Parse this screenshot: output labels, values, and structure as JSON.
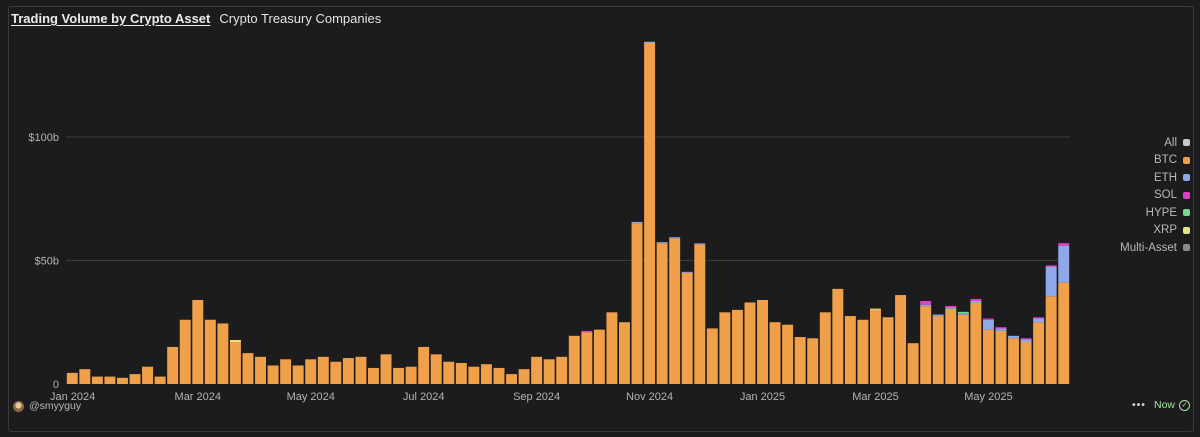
{
  "header": {
    "title": "Trading Volume by Crypto Asset",
    "subtitle": "Crypto Treasury Companies"
  },
  "footer": {
    "author": "@smyyguy",
    "menu": "•••",
    "status": "Now"
  },
  "colors": {
    "BTC": "#f0a04b",
    "ETH": "#8fa8e8",
    "SOL": "#e040c8",
    "HYPE": "#78d88a",
    "XRP": "#e8e480",
    "Multi-Asset": "#8a8a8a",
    "All": "#c8c8c8",
    "grid": "#3c3c3e",
    "axis_text": "#b4b4b4"
  },
  "chart_data": {
    "type": "bar",
    "stacked": true,
    "unit": "billions USD",
    "y_tick_labels": [
      {
        "value": 0,
        "label": "0"
      },
      {
        "value": 50,
        "label": "$50b"
      },
      {
        "value": 100,
        "label": "$100b"
      }
    ],
    "ylim": [
      0,
      138
    ],
    "x_tick_labels": [
      {
        "index": 10,
        "label": "Mar 2024"
      },
      {
        "index": 19,
        "label": "May 2024"
      },
      {
        "index": 28,
        "label": "Jul 2024"
      },
      {
        "index": 37,
        "label": "Sep 2024"
      },
      {
        "index": 46,
        "label": "Nov 2024"
      },
      {
        "index": 55,
        "label": "Jan 2025"
      },
      {
        "index": 64,
        "label": "Mar 2025"
      },
      {
        "index": 73,
        "label": "May 2025"
      }
    ],
    "x_start_label": "Jan 2024",
    "legend": [
      "All",
      "BTC",
      "ETH",
      "SOL",
      "HYPE",
      "XRP",
      "Multi-Asset"
    ],
    "legend_position": "right",
    "series": [
      {
        "name": "BTC",
        "values": [
          4.5,
          6,
          3,
          3,
          2.5,
          4,
          7,
          3,
          15,
          26,
          34,
          26,
          24.5,
          17,
          12.5,
          11,
          7.5,
          10,
          7.5,
          10,
          11,
          9,
          10.5,
          11,
          6.5,
          12,
          6.5,
          7,
          15,
          12,
          9,
          8.5,
          7,
          8,
          6.5,
          4,
          6,
          11,
          10,
          11,
          19.5,
          21,
          22,
          29,
          25,
          65,
          138,
          57,
          59,
          45,
          56.5,
          22.5,
          29,
          30,
          33,
          34,
          25,
          24,
          19,
          18.5,
          29,
          38.5,
          27.5,
          26,
          30,
          27,
          36,
          16.5,
          31.5,
          27.5,
          30.5,
          28,
          33,
          22,
          21.5,
          18.5,
          17,
          25,
          35.5,
          41
        ]
      },
      {
        "name": "ETH",
        "values": [
          0,
          0,
          0,
          0,
          0,
          0,
          0,
          0,
          0,
          0,
          0,
          0,
          0,
          0,
          0,
          0,
          0,
          0,
          0,
          0,
          0,
          0,
          0,
          0,
          0,
          0,
          0,
          0,
          0,
          0,
          0,
          0,
          0,
          0,
          0,
          0,
          0,
          0,
          0,
          0,
          0,
          0,
          0,
          0,
          0,
          0.6,
          0.5,
          0.4,
          0.4,
          0.4,
          0.4,
          0,
          0,
          0,
          0,
          0,
          0,
          0,
          0,
          0,
          0,
          0,
          0,
          0,
          0,
          0,
          0,
          0,
          0.6,
          0.6,
          0.6,
          0.6,
          0.6,
          4,
          1,
          1,
          1,
          1.5,
          12,
          15
        ]
      },
      {
        "name": "SOL",
        "values": [
          0,
          0,
          0,
          0,
          0,
          0,
          0,
          0,
          0,
          0,
          0,
          0,
          0,
          0,
          0,
          0,
          0,
          0,
          0,
          0,
          0,
          0,
          0,
          0,
          0,
          0,
          0,
          0,
          0,
          0,
          0,
          0,
          0,
          0,
          0,
          0,
          0,
          0,
          0,
          0,
          0,
          0.5,
          0,
          0,
          0,
          0,
          0,
          0,
          0,
          0,
          0,
          0,
          0,
          0,
          0,
          0,
          0,
          0,
          0,
          0,
          0,
          0,
          0,
          0,
          0,
          0,
          0,
          0,
          1.5,
          0,
          0.5,
          0,
          0.8,
          0.5,
          0.5,
          0,
          0.5,
          0.5,
          0.5,
          1
        ]
      },
      {
        "name": "HYPE",
        "values": [
          0,
          0,
          0,
          0,
          0,
          0,
          0,
          0,
          0,
          0,
          0,
          0,
          0,
          0,
          0,
          0,
          0,
          0,
          0,
          0,
          0,
          0,
          0,
          0,
          0,
          0,
          0,
          0,
          0,
          0,
          0,
          0,
          0,
          0,
          0,
          0,
          0,
          0,
          0,
          0,
          0,
          0,
          0,
          0,
          0,
          0,
          0,
          0,
          0,
          0,
          0,
          0,
          0,
          0,
          0,
          0,
          0,
          0,
          0,
          0,
          0,
          0,
          0,
          0,
          0,
          0,
          0,
          0,
          0,
          0,
          0,
          0.6,
          0,
          0,
          0,
          0,
          0,
          0,
          0,
          0
        ]
      },
      {
        "name": "XRP",
        "values": [
          0,
          0,
          0,
          0,
          0,
          0,
          0,
          0,
          0,
          0,
          0,
          0,
          0,
          0.8,
          0,
          0,
          0,
          0,
          0,
          0,
          0,
          0,
          0,
          0,
          0,
          0,
          0,
          0,
          0,
          0,
          0,
          0,
          0,
          0,
          0,
          0,
          0,
          0,
          0,
          0,
          0,
          0,
          0,
          0,
          0,
          0,
          0,
          0,
          0,
          0,
          0,
          0,
          0,
          0,
          0,
          0,
          0,
          0,
          0,
          0,
          0,
          0,
          0,
          0,
          0.5,
          0,
          0,
          0,
          0,
          0,
          0,
          0,
          0,
          0,
          0,
          0,
          0,
          0,
          0,
          0
        ]
      }
    ]
  }
}
